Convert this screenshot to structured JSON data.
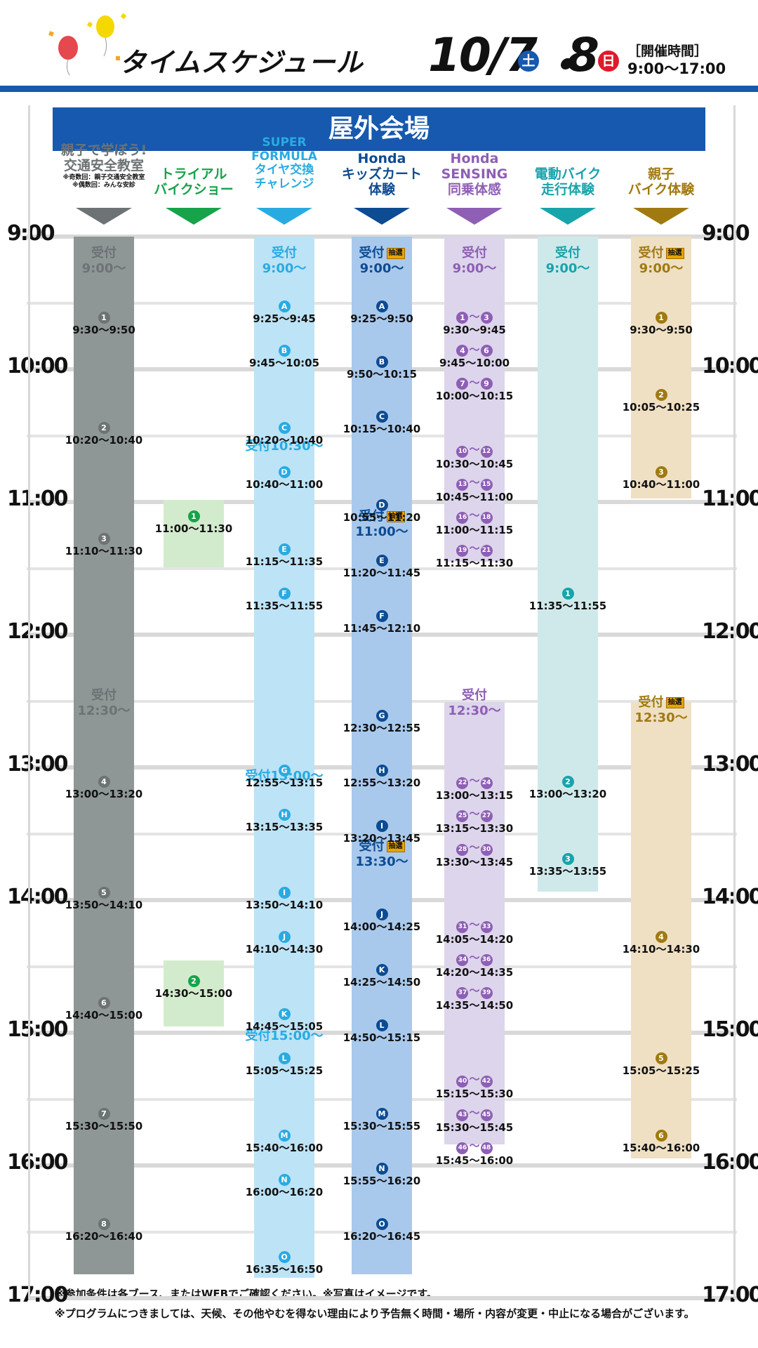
{
  "header": {
    "title": "タイムスケジュール",
    "date_main": "10/7",
    "sat": "土",
    "dot": "・",
    "date_second": "8",
    "sun": "日",
    "hours_label": "［開催時間］",
    "hours": "9:00〜17:00"
  },
  "banner": "屋外会場",
  "ticks": [
    "9:00",
    "10:00",
    "11:00",
    "12:00",
    "13:00",
    "14:00",
    "15:00",
    "16:00",
    "17:00"
  ],
  "lottery": "抽選",
  "colors": {
    "blue": "#1659ae",
    "gray": "#6d7374",
    "green": "#16a34a",
    "cyan": "#29abe2",
    "navy": "#0d4b92",
    "purple": "#8e5fb5",
    "teal": "#17a4ab",
    "gold": "#a07a10"
  },
  "columns": [
    {
      "title": [
        "親子で学ぼう!",
        "交通安全教室"
      ],
      "sub": [
        "※奇数回：親子交通安全教室",
        "※偶数回：みんな安診"
      ],
      "color": "#6d7374",
      "bar": "#8f9696",
      "regs": [
        {
          "label": "受付",
          "time": "9:00〜",
          "lot": false
        },
        {
          "label": "受付",
          "time": "12:30〜",
          "lot": false
        }
      ],
      "slots": [
        {
          "b": [
            "1"
          ],
          "t": "9:30〜9:50"
        },
        {
          "b": [
            "2"
          ],
          "t": "10:20〜10:40"
        },
        {
          "b": [
            "3"
          ],
          "t": "11:10〜11:30"
        },
        {
          "b": [
            "4"
          ],
          "t": "13:00〜13:20"
        },
        {
          "b": [
            "5"
          ],
          "t": "13:50〜14:10"
        },
        {
          "b": [
            "6"
          ],
          "t": "14:40〜15:00"
        },
        {
          "b": [
            "7"
          ],
          "t": "15:30〜15:50"
        },
        {
          "b": [
            "8"
          ],
          "t": "16:20〜16:40"
        }
      ]
    },
    {
      "title": [
        "トライアル",
        "バイクショー"
      ],
      "sub": [],
      "color": "#16a34a",
      "bar": "#d3ebcd",
      "regs": [],
      "slots": [
        {
          "b": [
            "1"
          ],
          "t": "11:00〜11:30"
        },
        {
          "b": [
            "2"
          ],
          "t": "14:30〜15:00"
        }
      ]
    },
    {
      "title": [
        "SUPER",
        "FORMULA",
        "タイヤ交換",
        "チャレンジ"
      ],
      "sub": [],
      "color": "#29abe2",
      "bar": "#bde3f6",
      "regs": [
        {
          "label": "受付",
          "time": "9:00〜",
          "lot": false
        },
        {
          "label": "受付10:30〜",
          "time": "",
          "lot": false
        },
        {
          "label": "受付13:00〜",
          "time": "",
          "lot": false
        },
        {
          "label": "受付15:00〜",
          "time": "",
          "lot": false
        }
      ],
      "slots": [
        {
          "b": [
            "A"
          ],
          "t": "9:25〜9:45"
        },
        {
          "b": [
            "B"
          ],
          "t": "9:45〜10:05"
        },
        {
          "b": [
            "C"
          ],
          "t": "10:20〜10:40"
        },
        {
          "b": [
            "D"
          ],
          "t": "10:40〜11:00"
        },
        {
          "b": [
            "E"
          ],
          "t": "11:15〜11:35"
        },
        {
          "b": [
            "F"
          ],
          "t": "11:35〜11:55"
        },
        {
          "b": [
            "G"
          ],
          "t": "12:55〜13:15"
        },
        {
          "b": [
            "H"
          ],
          "t": "13:15〜13:35"
        },
        {
          "b": [
            "I"
          ],
          "t": "13:50〜14:10"
        },
        {
          "b": [
            "J"
          ],
          "t": "14:10〜14:30"
        },
        {
          "b": [
            "K"
          ],
          "t": "14:45〜15:05"
        },
        {
          "b": [
            "L"
          ],
          "t": "15:05〜15:25"
        },
        {
          "b": [
            "M"
          ],
          "t": "15:40〜16:00"
        },
        {
          "b": [
            "N"
          ],
          "t": "16:00〜16:20"
        },
        {
          "b": [
            "O"
          ],
          "t": "16:35〜16:50"
        }
      ]
    },
    {
      "title": [
        "Honda",
        "キッズカート",
        "体験"
      ],
      "sub": [],
      "color": "#0d4b92",
      "bar": "#a9c9ec",
      "regs": [
        {
          "label": "受付",
          "time": "9:00〜",
          "lot": true
        },
        {
          "label": "受付",
          "time": "11:00〜",
          "lot": true
        },
        {
          "label": "受付",
          "time": "13:30〜",
          "lot": true
        }
      ],
      "slots": [
        {
          "b": [
            "A"
          ],
          "t": "9:25〜9:50"
        },
        {
          "b": [
            "B"
          ],
          "t": "9:50〜10:15"
        },
        {
          "b": [
            "C"
          ],
          "t": "10:15〜10:40"
        },
        {
          "b": [
            "D"
          ],
          "t": "10:55〜11:20"
        },
        {
          "b": [
            "E"
          ],
          "t": "11:20〜11:45"
        },
        {
          "b": [
            "F"
          ],
          "t": "11:45〜12:10"
        },
        {
          "b": [
            "G"
          ],
          "t": "12:30〜12:55"
        },
        {
          "b": [
            "H"
          ],
          "t": "12:55〜13:20"
        },
        {
          "b": [
            "I"
          ],
          "t": "13:20〜13:45"
        },
        {
          "b": [
            "J"
          ],
          "t": "14:00〜14:25"
        },
        {
          "b": [
            "K"
          ],
          "t": "14:25〜14:50"
        },
        {
          "b": [
            "L"
          ],
          "t": "14:50〜15:15"
        },
        {
          "b": [
            "M"
          ],
          "t": "15:30〜15:55"
        },
        {
          "b": [
            "N"
          ],
          "t": "15:55〜16:20"
        },
        {
          "b": [
            "O"
          ],
          "t": "16:20〜16:45"
        }
      ]
    },
    {
      "title": [
        "Honda",
        "SENSING",
        "同乗体感"
      ],
      "sub": [],
      "color": "#8e5fb5",
      "bar": "#ddd5ec",
      "regs": [
        {
          "label": "受付",
          "time": "9:00〜",
          "lot": false
        },
        {
          "label": "受付",
          "time": "12:30〜",
          "lot": false
        }
      ],
      "slots": [
        {
          "b": [
            "1",
            "3"
          ],
          "t": "9:30〜9:45"
        },
        {
          "b": [
            "4",
            "6"
          ],
          "t": "9:45〜10:00"
        },
        {
          "b": [
            "7",
            "9"
          ],
          "t": "10:00〜10:15"
        },
        {
          "b": [
            "10",
            "12"
          ],
          "t": "10:30〜10:45"
        },
        {
          "b": [
            "13",
            "15"
          ],
          "t": "10:45〜11:00"
        },
        {
          "b": [
            "16",
            "18"
          ],
          "t": "11:00〜11:15"
        },
        {
          "b": [
            "19",
            "21"
          ],
          "t": "11:15〜11:30"
        },
        {
          "b": [
            "22",
            "24"
          ],
          "t": "13:00〜13:15"
        },
        {
          "b": [
            "25",
            "27"
          ],
          "t": "13:15〜13:30"
        },
        {
          "b": [
            "28",
            "30"
          ],
          "t": "13:30〜13:45"
        },
        {
          "b": [
            "31",
            "33"
          ],
          "t": "14:05〜14:20"
        },
        {
          "b": [
            "34",
            "36"
          ],
          "t": "14:20〜14:35"
        },
        {
          "b": [
            "37",
            "39"
          ],
          "t": "14:35〜14:50"
        },
        {
          "b": [
            "40",
            "42"
          ],
          "t": "15:15〜15:30"
        },
        {
          "b": [
            "43",
            "45"
          ],
          "t": "15:30〜15:45"
        },
        {
          "b": [
            "46",
            "48"
          ],
          "t": "15:45〜16:00"
        }
      ]
    },
    {
      "title": [
        "電動バイク",
        "走行体験"
      ],
      "sub": [],
      "color": "#17a4ab",
      "bar": "#cfe9eb",
      "regs": [
        {
          "label": "受付",
          "time": "9:00〜",
          "lot": false
        }
      ],
      "slots": [
        {
          "b": [
            "1"
          ],
          "t": "11:35〜11:55"
        },
        {
          "b": [
            "2"
          ],
          "t": "13:00〜13:20"
        },
        {
          "b": [
            "3"
          ],
          "t": "13:35〜13:55"
        }
      ]
    },
    {
      "title": [
        "親子",
        "バイク体験"
      ],
      "sub": [],
      "color": "#a07a10",
      "bar": "#efe0c4",
      "regs": [
        {
          "label": "受付",
          "time": "9:00〜",
          "lot": true
        },
        {
          "label": "受付",
          "time": "12:30〜",
          "lot": true
        }
      ],
      "slots": [
        {
          "b": [
            "1"
          ],
          "t": "9:30〜9:50"
        },
        {
          "b": [
            "2"
          ],
          "t": "10:05〜10:25"
        },
        {
          "b": [
            "3"
          ],
          "t": "10:40〜11:00"
        },
        {
          "b": [
            "4"
          ],
          "t": "14:10〜14:30"
        },
        {
          "b": [
            "5"
          ],
          "t": "15:05〜15:25"
        },
        {
          "b": [
            "6"
          ],
          "t": "15:40〜16:00"
        }
      ]
    }
  ],
  "notes": [
    "※参加条件は各ブース、またはWEBでご確認ください。※写真はイメージです。",
    "※プログラムにつきましては、天候、その他やむを得ない理由により予告無く時間・場所・内容が変更・中止になる場合がございます。"
  ]
}
